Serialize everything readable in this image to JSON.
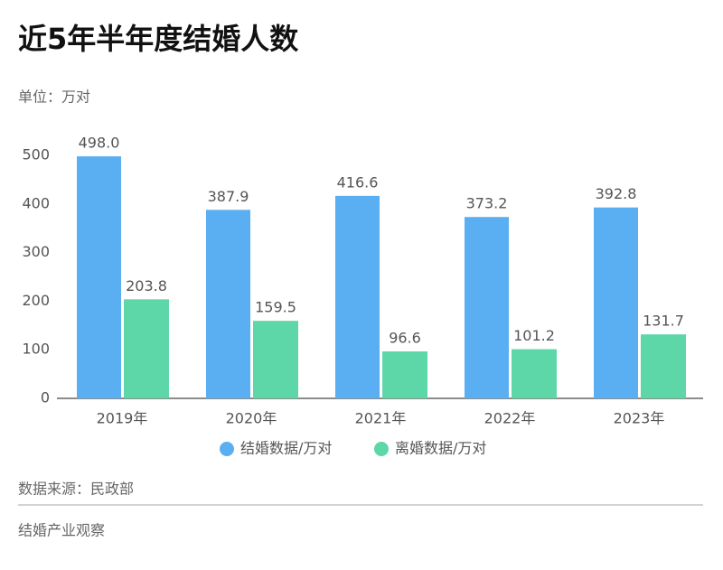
{
  "chart_data": {
    "type": "bar",
    "title": "近5年半年度结婚人数",
    "subtitle": "单位：万对",
    "source": "数据来源：民政部",
    "footer": "结婚产业观察",
    "categories": [
      "2019年",
      "2020年",
      "2021年",
      "2022年",
      "2023年"
    ],
    "series": [
      {
        "name": "结婚数据/万对",
        "color": "#5aaef2",
        "values": [
          498.0,
          387.9,
          416.6,
          373.2,
          392.8
        ],
        "value_labels": [
          "498.0",
          "387.9",
          "416.6",
          "373.2",
          "392.8"
        ]
      },
      {
        "name": "离婚数据/万对",
        "color": "#5dd6a8",
        "values": [
          203.8,
          159.5,
          96.6,
          101.2,
          131.7
        ],
        "value_labels": [
          "203.8",
          "159.5",
          "96.6",
          "101.2",
          "131.7"
        ]
      }
    ],
    "ylim": [
      0,
      500
    ],
    "yticks": [
      0,
      100,
      200,
      300,
      400,
      500
    ],
    "grid": false,
    "legend": "bottom"
  }
}
